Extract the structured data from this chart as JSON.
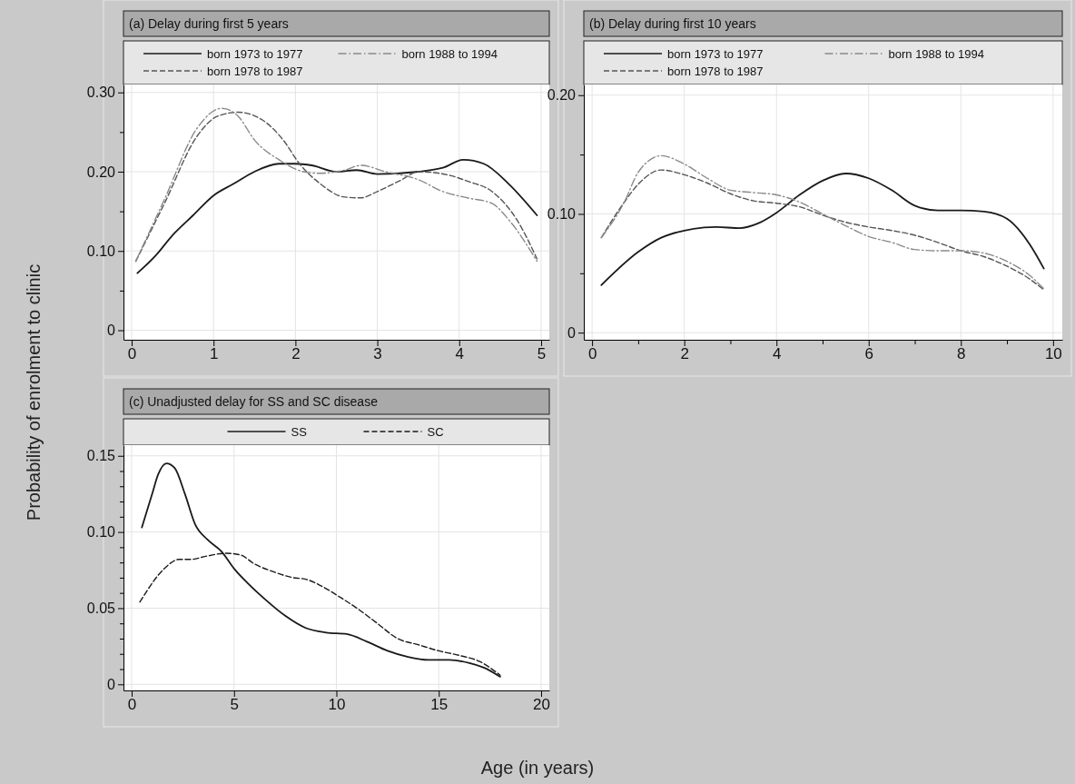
{
  "chart_data": [
    {
      "type": "line",
      "title": "(a) Delay during first 5 years",
      "ylabel": "Probability of enrolment to clinic",
      "legend": "top",
      "grid": true,
      "xlim": [
        -0.1,
        5.1
      ],
      "xticks": [
        0,
        1,
        2,
        3,
        4,
        5
      ],
      "ylim": [
        -0.012,
        0.31
      ],
      "yticks": [
        {
          "value": 0,
          "label": "0"
        },
        {
          "value": 0.05,
          "label": null
        },
        {
          "value": 0.1,
          "label": "0.10"
        },
        {
          "value": 0.15,
          "label": null
        },
        {
          "value": 0.2,
          "label": "0.20"
        },
        {
          "value": 0.25,
          "label": null
        },
        {
          "value": 0.3,
          "label": "0.30"
        }
      ],
      "series": [
        {
          "name": "born 1973 to 1977",
          "color": "#1a1a1a",
          "line_style": "solid",
          "x": [
            0.07,
            0.3,
            0.5,
            0.75,
            1,
            1.25,
            1.5,
            1.8,
            2,
            2.2,
            2.5,
            2.75,
            3,
            3.5,
            3.8,
            4.05,
            4.3,
            4.6,
            4.95
          ],
          "values": [
            0.072,
            0.095,
            0.12,
            0.145,
            0.17,
            0.185,
            0.2,
            0.21,
            0.21,
            0.208,
            0.2,
            0.202,
            0.197,
            0.2,
            0.205,
            0.215,
            0.21,
            0.185,
            0.145
          ]
        },
        {
          "name": "born 1978 to 1987",
          "color": "#555555",
          "line_style": "dashed",
          "x": [
            0.05,
            0.4,
            0.8,
            1.05,
            1.3,
            1.6,
            1.85,
            2.05,
            2.3,
            2.6,
            2.8,
            3,
            3.3,
            3.5,
            3.9,
            4.1,
            4.4,
            4.7,
            4.95
          ],
          "values": [
            0.087,
            0.16,
            0.245,
            0.27,
            0.275,
            0.265,
            0.24,
            0.21,
            0.185,
            0.168,
            0.167,
            0.175,
            0.19,
            0.2,
            0.195,
            0.188,
            0.175,
            0.14,
            0.09
          ]
        },
        {
          "name": "born 1988 to 1994",
          "color": "#8a8a8a",
          "line_style": "dotted",
          "x": [
            0.05,
            0.4,
            0.8,
            1.1,
            1.3,
            1.5,
            1.8,
            2.1,
            2.3,
            2.6,
            2.8,
            3.1,
            3.5,
            3.8,
            4.1,
            4.4,
            4.6,
            4.95
          ],
          "values": [
            0.087,
            0.165,
            0.255,
            0.28,
            0.27,
            0.24,
            0.215,
            0.2,
            0.198,
            0.202,
            0.208,
            0.2,
            0.19,
            0.175,
            0.167,
            0.16,
            0.14,
            0.087
          ]
        }
      ]
    },
    {
      "type": "line",
      "title": "(b) Delay during first 10 years",
      "legend": "top",
      "grid": true,
      "xlim": [
        -0.18,
        10.2
      ],
      "xticks": [
        0,
        {
          "value": 1,
          "label": null
        },
        2,
        {
          "value": 3,
          "label": null
        },
        4,
        {
          "value": 5,
          "label": null
        },
        6,
        {
          "value": 7,
          "label": null
        },
        8,
        {
          "value": 9,
          "label": null
        },
        10
      ],
      "ylim": [
        -0.006,
        0.209
      ],
      "yticks": [
        {
          "value": 0,
          "label": "0"
        },
        {
          "value": 0.05,
          "label": null
        },
        {
          "value": 0.1,
          "label": "0.10"
        },
        {
          "value": 0.15,
          "label": null
        },
        {
          "value": 0.2,
          "label": "0.20"
        }
      ],
      "series": [
        {
          "name": "born 1973 to 1977",
          "color": "#1a1a1a",
          "line_style": "solid",
          "x": [
            0.2,
            1,
            1.5,
            2,
            2.7,
            3.2,
            3.6,
            4,
            4.5,
            5,
            5.5,
            6,
            6.5,
            7,
            7.5,
            8,
            8.5,
            9,
            9.5,
            9.8
          ],
          "values": [
            0.04,
            0.068,
            0.08,
            0.086,
            0.089,
            0.088,
            0.092,
            0.101,
            0.116,
            0.128,
            0.134,
            0.13,
            0.12,
            0.107,
            0.103,
            0.103,
            0.102,
            0.096,
            0.074,
            0.054
          ]
        },
        {
          "name": "born 1978 to 1987",
          "color": "#555555",
          "line_style": "dashed",
          "x": [
            0.2,
            0.7,
            1,
            1.5,
            2,
            2.5,
            3,
            3.5,
            4,
            4.5,
            5,
            5.5,
            6,
            6.5,
            7,
            7.5,
            8,
            8.5,
            9,
            9.5,
            9.8
          ],
          "values": [
            0.08,
            0.11,
            0.125,
            0.137,
            0.133,
            0.126,
            0.117,
            0.111,
            0.109,
            0.106,
            0.099,
            0.093,
            0.089,
            0.086,
            0.082,
            0.076,
            0.069,
            0.064,
            0.056,
            0.045,
            0.036
          ]
        },
        {
          "name": "born 1988 to 1994",
          "color": "#8a8a8a",
          "line_style": "dotted",
          "x": [
            0.2,
            0.7,
            1,
            1.5,
            2,
            2.5,
            3,
            3.5,
            4,
            4.5,
            5,
            5.5,
            6,
            6.5,
            7,
            7.5,
            8,
            8.5,
            9,
            9.5,
            9.8
          ],
          "values": [
            0.08,
            0.11,
            0.135,
            0.149,
            0.142,
            0.13,
            0.12,
            0.118,
            0.116,
            0.11,
            0.1,
            0.09,
            0.081,
            0.076,
            0.07,
            0.069,
            0.069,
            0.067,
            0.06,
            0.048,
            0.037
          ]
        }
      ]
    },
    {
      "type": "line",
      "title": "(c) Unadjusted delay for SS and SC disease",
      "xlabel": "Age (in years)",
      "legend": "top",
      "grid": true,
      "xlim": [
        -0.4,
        20.4
      ],
      "xticks": [
        0,
        5,
        10,
        15,
        20
      ],
      "ylim": [
        -0.004,
        0.157
      ],
      "yticks": [
        {
          "value": 0,
          "label": "0"
        },
        {
          "value": 0.01,
          "label": null
        },
        {
          "value": 0.02,
          "label": null
        },
        {
          "value": 0.03,
          "label": null
        },
        {
          "value": 0.04,
          "label": null
        },
        {
          "value": 0.05,
          "label": "0.05"
        },
        {
          "value": 0.06,
          "label": null
        },
        {
          "value": 0.07,
          "label": null
        },
        {
          "value": 0.08,
          "label": null
        },
        {
          "value": 0.09,
          "label": null
        },
        {
          "value": 0.1,
          "label": "0.10"
        },
        {
          "value": 0.11,
          "label": null
        },
        {
          "value": 0.12,
          "label": null
        },
        {
          "value": 0.13,
          "label": null
        },
        {
          "value": 0.14,
          "label": null
        },
        {
          "value": 0.15,
          "label": "0.15"
        }
      ],
      "series": [
        {
          "name": "SS",
          "color": "#1a1a1a",
          "line_style": "solid",
          "x": [
            0.5,
            1,
            1.3,
            1.7,
            2.1,
            2.6,
            3.1,
            3.7,
            4.4,
            5,
            5.7,
            6.5,
            7.5,
            8.5,
            9.5,
            10.5,
            11.5,
            12.5,
            13.5,
            14.5,
            15.5,
            16.5,
            17.2,
            18
          ],
          "values": [
            0.103,
            0.125,
            0.138,
            0.145,
            0.142,
            0.125,
            0.105,
            0.095,
            0.087,
            0.076,
            0.066,
            0.056,
            0.045,
            0.037,
            0.034,
            0.033,
            0.028,
            0.022,
            0.018,
            0.016,
            0.016,
            0.014,
            0.011,
            0.005
          ]
        },
        {
          "name": "SC",
          "color": "#1a1a1a",
          "line_style": "dashed",
          "x": [
            0.4,
            1.6,
            2.3,
            2.9,
            3.6,
            4.6,
            5.3,
            6,
            6.9,
            7.9,
            8.5,
            9.2,
            10.2,
            11,
            12,
            13,
            14,
            15,
            16,
            17,
            18
          ],
          "values": [
            0.054,
            0.076,
            0.082,
            0.082,
            0.084,
            0.086,
            0.085,
            0.079,
            0.074,
            0.07,
            0.069,
            0.065,
            0.057,
            0.05,
            0.04,
            0.03,
            0.026,
            0.022,
            0.019,
            0.015,
            0.006
          ]
        }
      ]
    }
  ]
}
